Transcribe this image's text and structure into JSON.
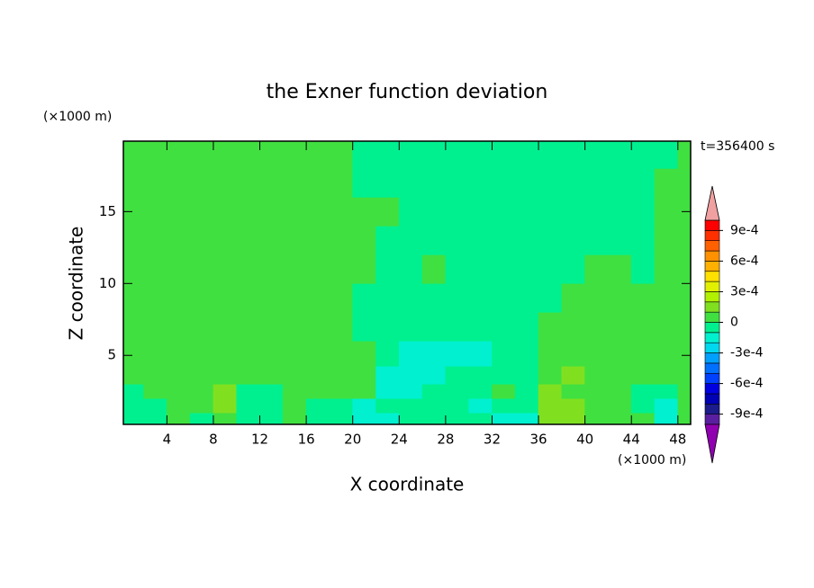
{
  "chart_data": {
    "type": "contour",
    "title": "the Exner function deviation",
    "x_label": "X coordinate",
    "y_label": "Z coordinate",
    "x_unit": "(×1000 m)",
    "y_unit": "(×1000 m)",
    "time_label": "t=356400 s",
    "xlim": [
      0.25,
      49.1
    ],
    "ylim": [
      0.2,
      19.9
    ],
    "xticks": [
      4,
      8,
      12,
      16,
      20,
      24,
      28,
      32,
      36,
      40,
      44,
      48
    ],
    "yticks": [
      5,
      10,
      15
    ],
    "x": [
      1,
      3,
      5,
      7,
      9,
      11,
      13,
      15,
      17,
      19,
      21,
      23,
      25,
      27,
      29,
      31,
      33,
      35,
      37,
      39,
      41,
      43,
      45,
      47,
      49
    ],
    "z": [
      0.5,
      1.5,
      2.5,
      3.5,
      5,
      7,
      9,
      11,
      13,
      15,
      17,
      19
    ],
    "values": [
      [
        -5e-05,
        -5e-05,
        5e-05,
        -5e-05,
        5e-05,
        -5e-05,
        -5e-05,
        5e-05,
        -5e-05,
        -5e-05,
        -0.00015,
        -0.00015,
        -5e-05,
        -5e-05,
        -5e-05,
        -5e-05,
        -0.00015,
        -0.00015,
        0.00015,
        0.00015,
        5e-05,
        5e-05,
        5e-05,
        -0.00015,
        5e-05
      ],
      [
        -5e-05,
        -5e-05,
        5e-05,
        5e-05,
        0.00015,
        -5e-05,
        -5e-05,
        5e-05,
        -5e-05,
        -5e-05,
        -0.00015,
        -5e-05,
        -5e-05,
        -5e-05,
        -5e-05,
        -0.00015,
        -5e-05,
        -5e-05,
        0.00015,
        0.00015,
        5e-05,
        5e-05,
        -5e-05,
        -0.00015,
        5e-05
      ],
      [
        -5e-05,
        5e-05,
        5e-05,
        5e-05,
        0.00015,
        -5e-05,
        -5e-05,
        5e-05,
        5e-05,
        5e-05,
        5e-05,
        -0.00015,
        -0.00015,
        -5e-05,
        -5e-05,
        -5e-05,
        5e-05,
        -5e-05,
        0.00015,
        5e-05,
        5e-05,
        5e-05,
        -5e-05,
        -5e-05,
        5e-05
      ],
      [
        5e-05,
        5e-05,
        5e-05,
        5e-05,
        5e-05,
        5e-05,
        5e-05,
        5e-05,
        5e-05,
        5e-05,
        5e-05,
        -0.00015,
        -0.00015,
        -0.00015,
        -5e-05,
        -5e-05,
        -5e-05,
        -5e-05,
        5e-05,
        0.00015,
        5e-05,
        5e-05,
        5e-05,
        5e-05,
        5e-05
      ],
      [
        5e-05,
        5e-05,
        5e-05,
        5e-05,
        5e-05,
        5e-05,
        5e-05,
        5e-05,
        5e-05,
        5e-05,
        5e-05,
        -5e-05,
        -0.00015,
        -0.00015,
        -0.00015,
        -0.00015,
        -5e-05,
        -5e-05,
        5e-05,
        5e-05,
        5e-05,
        5e-05,
        5e-05,
        5e-05,
        5e-05
      ],
      [
        5e-05,
        5e-05,
        5e-05,
        5e-05,
        5e-05,
        5e-05,
        5e-05,
        5e-05,
        5e-05,
        5e-05,
        -5e-05,
        -5e-05,
        -5e-05,
        -5e-05,
        -5e-05,
        -5e-05,
        -5e-05,
        -5e-05,
        5e-05,
        5e-05,
        5e-05,
        5e-05,
        5e-05,
        5e-05,
        5e-05
      ],
      [
        5e-05,
        5e-05,
        5e-05,
        5e-05,
        5e-05,
        5e-05,
        5e-05,
        5e-05,
        5e-05,
        5e-05,
        -5e-05,
        -5e-05,
        -5e-05,
        -5e-05,
        -5e-05,
        -5e-05,
        -5e-05,
        -5e-05,
        -5e-05,
        5e-05,
        5e-05,
        5e-05,
        5e-05,
        5e-05,
        5e-05
      ],
      [
        5e-05,
        5e-05,
        5e-05,
        5e-05,
        5e-05,
        5e-05,
        5e-05,
        5e-05,
        5e-05,
        5e-05,
        5e-05,
        -5e-05,
        -5e-05,
        5e-05,
        -5e-05,
        -5e-05,
        -5e-05,
        -5e-05,
        -5e-05,
        -5e-05,
        5e-05,
        5e-05,
        -5e-05,
        5e-05,
        5e-05
      ],
      [
        5e-05,
        5e-05,
        5e-05,
        5e-05,
        5e-05,
        5e-05,
        5e-05,
        5e-05,
        5e-05,
        5e-05,
        5e-05,
        -5e-05,
        -5e-05,
        -5e-05,
        -5e-05,
        -5e-05,
        -5e-05,
        -5e-05,
        -5e-05,
        -5e-05,
        -5e-05,
        -5e-05,
        -5e-05,
        5e-05,
        5e-05
      ],
      [
        5e-05,
        5e-05,
        5e-05,
        5e-05,
        5e-05,
        5e-05,
        5e-05,
        5e-05,
        5e-05,
        5e-05,
        5e-05,
        5e-05,
        -5e-05,
        -5e-05,
        -5e-05,
        -5e-05,
        -5e-05,
        -5e-05,
        -5e-05,
        -5e-05,
        -5e-05,
        -5e-05,
        -5e-05,
        5e-05,
        5e-05
      ],
      [
        5e-05,
        5e-05,
        5e-05,
        5e-05,
        5e-05,
        5e-05,
        5e-05,
        5e-05,
        5e-05,
        5e-05,
        -5e-05,
        -5e-05,
        -5e-05,
        -5e-05,
        -5e-05,
        -5e-05,
        -5e-05,
        -5e-05,
        -5e-05,
        -5e-05,
        -5e-05,
        -5e-05,
        -5e-05,
        5e-05,
        5e-05
      ],
      [
        5e-05,
        5e-05,
        5e-05,
        5e-05,
        5e-05,
        5e-05,
        5e-05,
        5e-05,
        5e-05,
        5e-05,
        -5e-05,
        -5e-05,
        -5e-05,
        -5e-05,
        -5e-05,
        -5e-05,
        -5e-05,
        -5e-05,
        -5e-05,
        -5e-05,
        -5e-05,
        -5e-05,
        -5e-05,
        -5e-05,
        5e-05
      ]
    ],
    "levels": [
      -0.001,
      -0.0009,
      -0.0008,
      -0.0007,
      -0.0006,
      -0.0005,
      -0.0004,
      -0.0003,
      -0.0002,
      -0.0001,
      0,
      0.0001,
      0.0002,
      0.0003,
      0.0004,
      0.0005,
      0.0006,
      0.0007,
      0.0008,
      0.0009,
      0.001
    ],
    "colors": [
      "#5a1fa0",
      "#1c1c8c",
      "#0000b4",
      "#0000e0",
      "#0040ff",
      "#0070ff",
      "#00a0ff",
      "#00d8f0",
      "#00f0d0",
      "#00f090",
      "#40e040",
      "#80e020",
      "#b0f000",
      "#e0f000",
      "#ffe000",
      "#ffb000",
      "#ff9000",
      "#ff6000",
      "#ff3000",
      "#ff0000"
    ],
    "over_color": "#f0a0a0",
    "under_color": "#9000b0",
    "colorbar_ticks": [
      {
        "value": 0.0009,
        "label": "9e-4"
      },
      {
        "value": 0.0006,
        "label": "6e-4"
      },
      {
        "value": 0.0003,
        "label": "3e-4"
      },
      0,
      {
        "value": -0.0003,
        "label": "-3e-4"
      },
      {
        "value": -0.0006,
        "label": "-6e-4"
      },
      {
        "value": -0.0009,
        "label": "-9e-4"
      }
    ]
  }
}
